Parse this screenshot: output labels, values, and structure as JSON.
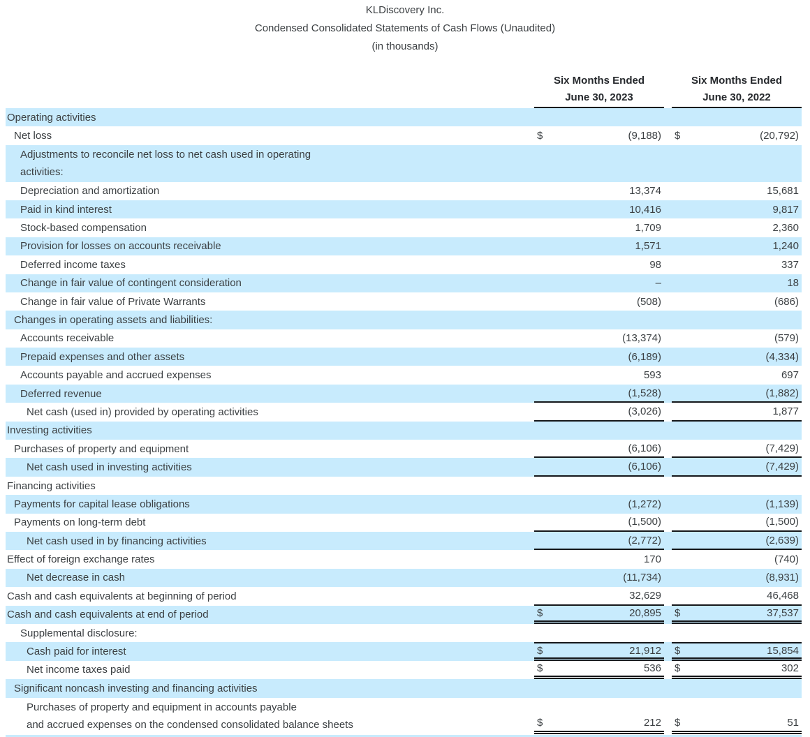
{
  "title": {
    "company": "KLDiscovery Inc.",
    "statement": "Condensed Consolidated Statements of Cash Flows (Unaudited)",
    "units": "(in thousands)"
  },
  "columns": [
    {
      "line1": "Six Months Ended",
      "line2": "June 30, 2023"
    },
    {
      "line1": "Six Months Ended",
      "line2": "June 30, 2022"
    }
  ],
  "colors": {
    "row_highlight": "#c8ebfd",
    "text": "#3c4043",
    "rule": "#15171a"
  },
  "rows": [
    {
      "label": "Operating activities",
      "indent": 0,
      "shaded": true
    },
    {
      "label": "Net loss",
      "indent": 1,
      "shaded": false,
      "cur1": "$",
      "v1": "(9,188)",
      "cur2": "$",
      "v2": "(20,792)"
    },
    {
      "label": "Adjustments to reconcile net loss to net cash used in operating",
      "label2": "activities:",
      "indent": 2,
      "shaded": true
    },
    {
      "label": "Depreciation and amortization",
      "indent": 2,
      "shaded": false,
      "v1": "13,374",
      "v2": "15,681"
    },
    {
      "label": "Paid in kind interest",
      "indent": 2,
      "shaded": true,
      "v1": "10,416",
      "v2": "9,817"
    },
    {
      "label": "Stock-based compensation",
      "indent": 2,
      "shaded": false,
      "v1": "1,709",
      "v2": "2,360"
    },
    {
      "label": "Provision for losses on accounts receivable",
      "indent": 2,
      "shaded": true,
      "v1": "1,571",
      "v2": "1,240"
    },
    {
      "label": "Deferred income taxes",
      "indent": 2,
      "shaded": false,
      "v1": "98",
      "v2": "337"
    },
    {
      "label": "Change in fair value of contingent consideration",
      "indent": 2,
      "shaded": true,
      "v1": "–",
      "v2": "18"
    },
    {
      "label": "Change in fair value of Private Warrants",
      "indent": 2,
      "shaded": false,
      "v1": "(508)",
      "v2": "(686)"
    },
    {
      "label": "Changes in operating assets and liabilities:",
      "indent": 1,
      "shaded": true
    },
    {
      "label": "Accounts receivable",
      "indent": 2,
      "shaded": false,
      "v1": "(13,374)",
      "v2": "(579)"
    },
    {
      "label": "Prepaid expenses and other assets",
      "indent": 2,
      "shaded": true,
      "v1": "(6,189)",
      "v2": "(4,334)"
    },
    {
      "label": "Accounts payable and accrued expenses",
      "indent": 2,
      "shaded": false,
      "v1": "593",
      "v2": "697"
    },
    {
      "label": "Deferred revenue",
      "indent": 2,
      "shaded": true,
      "v1": "(1,528)",
      "v2": "(1,882)",
      "rule": "bottom"
    },
    {
      "label": "Net cash (used in) provided by operating activities",
      "indent": 3,
      "shaded": false,
      "v1": "(3,026)",
      "v2": "1,877",
      "rule": "bottom"
    },
    {
      "label": "Investing activities",
      "indent": 0,
      "shaded": true
    },
    {
      "label": "Purchases of property and equipment",
      "indent": 1,
      "shaded": false,
      "v1": "(6,106)",
      "v2": "(7,429)",
      "rule": "bottom"
    },
    {
      "label": "Net cash used in investing activities",
      "indent": 3,
      "shaded": true,
      "v1": "(6,106)",
      "v2": "(7,429)",
      "rule": "bottom"
    },
    {
      "label": "Financing activities",
      "indent": 0,
      "shaded": false
    },
    {
      "label": "Payments for capital lease obligations",
      "indent": 1,
      "shaded": true,
      "v1": "(1,272)",
      "v2": "(1,139)"
    },
    {
      "label": "Payments on long-term debt",
      "indent": 1,
      "shaded": false,
      "v1": "(1,500)",
      "v2": "(1,500)",
      "rule": "bottom"
    },
    {
      "label": "Net cash used in by financing activities",
      "indent": 3,
      "shaded": true,
      "v1": "(2,772)",
      "v2": "(2,639)",
      "rule": "bottom"
    },
    {
      "label": "Effect of foreign exchange rates",
      "indent": 0,
      "shaded": false,
      "v1": "170",
      "v2": "(740)"
    },
    {
      "label": "Net decrease in cash",
      "indent": 3,
      "shaded": true,
      "v1": "(11,734)",
      "v2": "(8,931)"
    },
    {
      "label": "Cash and cash equivalents at beginning of period",
      "indent": 0,
      "shaded": false,
      "v1": "32,629",
      "v2": "46,468",
      "rule": "bottom"
    },
    {
      "label": "Cash and cash equivalents at end of period",
      "indent": 0,
      "shaded": true,
      "cur1": "$",
      "v1": "20,895",
      "cur2": "$",
      "v2": "37,537",
      "rule": "bottom-double"
    },
    {
      "label": "Supplemental disclosure:",
      "indent": 2,
      "shaded": false
    },
    {
      "label": "Cash paid for interest",
      "indent": 3,
      "shaded": true,
      "cur1": "$",
      "v1": "21,912",
      "cur2": "$",
      "v2": "15,854",
      "rule": "top-and-bottom-double"
    },
    {
      "label": "Net income taxes paid",
      "indent": 3,
      "shaded": false,
      "cur1": "$",
      "v1": "536",
      "cur2": "$",
      "v2": "302",
      "rule": "bottom-double"
    },
    {
      "label": "Significant noncash investing and financing activities",
      "indent": 1,
      "shaded": true
    },
    {
      "label": "Purchases of property and equipment in accounts payable",
      "label2": "and accrued expenses on the condensed consolidated balance sheets",
      "indent": 3,
      "shaded": false,
      "cur1": "$",
      "v1": "212",
      "cur2": "$",
      "v2": "51",
      "rule": "bottom-double",
      "valign": "bottom"
    }
  ]
}
